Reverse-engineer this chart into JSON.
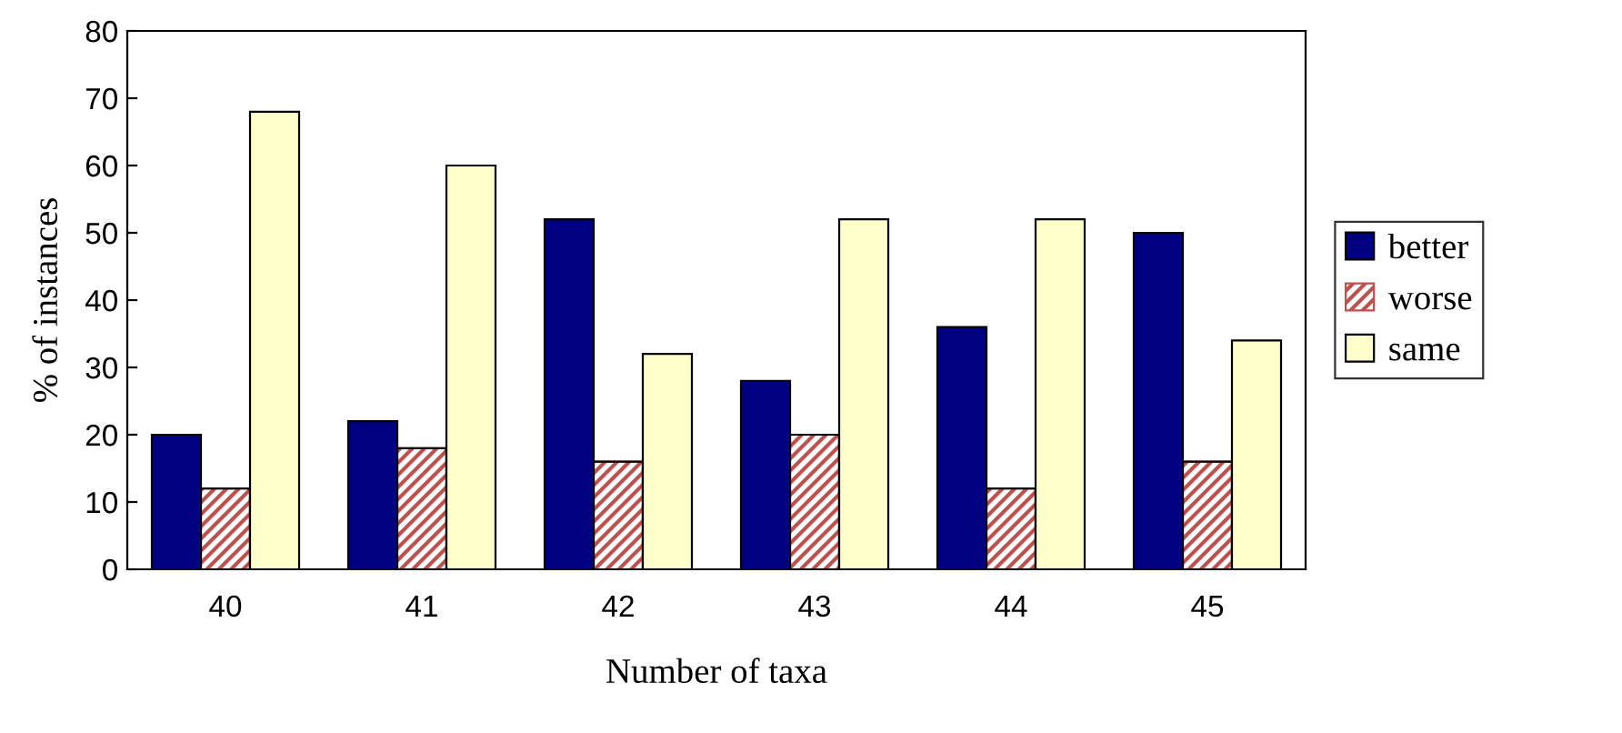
{
  "chart_data": {
    "type": "bar",
    "xlabel": "Number of taxa",
    "ylabel": "% of instances",
    "categories": [
      "40",
      "41",
      "42",
      "43",
      "44",
      "45"
    ],
    "series": [
      {
        "name": "better",
        "color": "#000080",
        "values": [
          20,
          22,
          52,
          28,
          36,
          50
        ]
      },
      {
        "name": "worse",
        "color": "#c0504d",
        "values": [
          12,
          18,
          16,
          20,
          12,
          16
        ]
      },
      {
        "name": "same",
        "color": "#ffffcc",
        "values": [
          68,
          60,
          32,
          52,
          52,
          34
        ]
      }
    ],
    "ylim": [
      0,
      80
    ],
    "yticks": [
      0,
      10,
      20,
      30,
      40,
      50,
      60,
      70,
      80
    ],
    "grid": false,
    "legend": "right"
  }
}
